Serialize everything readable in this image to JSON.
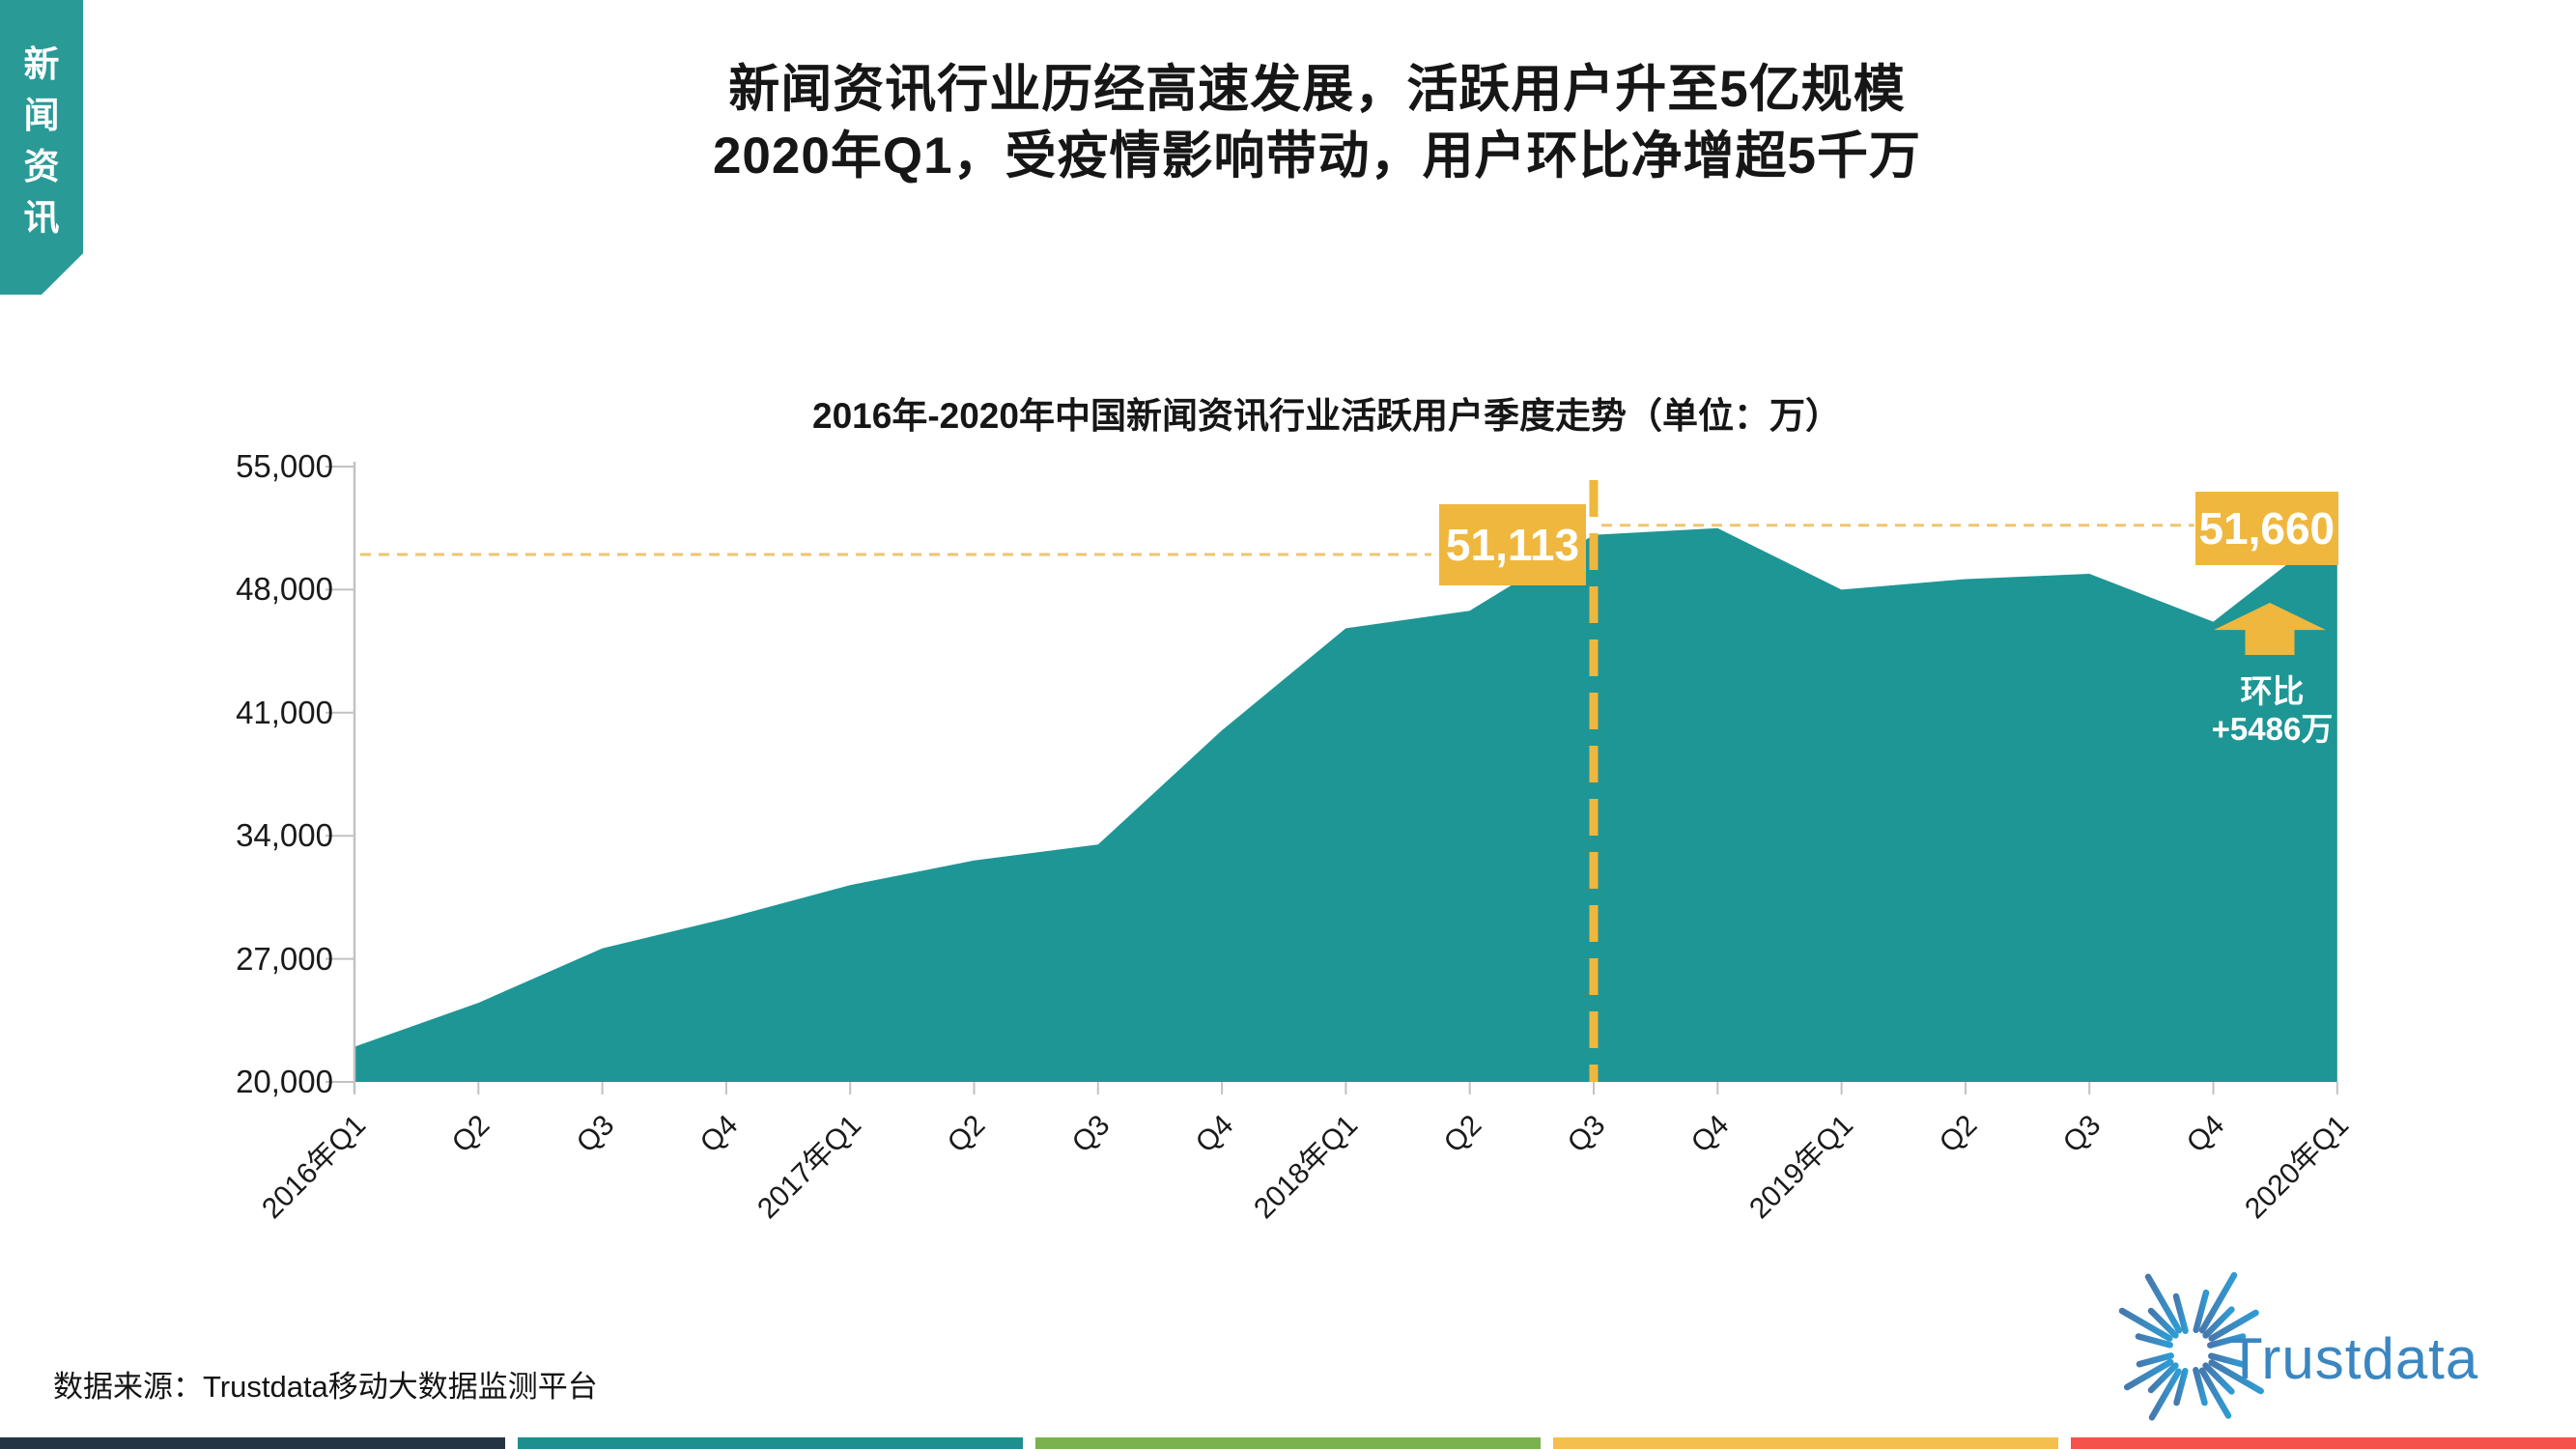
{
  "ribbon": {
    "label": "新闻资讯",
    "color": "#2A9A97"
  },
  "title": {
    "line1": "新闻资讯行业历经高速发展，活跃用户升至5亿规模",
    "line2": "2020年Q1，受疫情影响带动，用户环比净增超5千万"
  },
  "chart_data": {
    "type": "area",
    "title": "2016年-2020年中国新闻资讯行业活跃用户季度走势（单位：万）",
    "categories": [
      "2016年Q1",
      "Q2",
      "Q3",
      "Q4",
      "2017年Q1",
      "Q2",
      "Q3",
      "Q4",
      "2018年Q1",
      "Q2",
      "Q3",
      "Q4",
      "2019年Q1",
      "Q2",
      "Q3",
      "Q4",
      "2020年Q1"
    ],
    "values": [
      22000,
      24500,
      27600,
      29300,
      31200,
      32600,
      33500,
      40000,
      45800,
      46800,
      51113,
      51500,
      48000,
      48600,
      48900,
      46174,
      51660
    ],
    "unit": "万",
    "xlabel": "",
    "ylabel": "",
    "ylim": [
      20000,
      55000
    ],
    "yticks": [
      {
        "v": 20000,
        "label": "20,000"
      },
      {
        "v": 27000,
        "label": "27,000"
      },
      {
        "v": 34000,
        "label": "34,000"
      },
      {
        "v": 41000,
        "label": "41,000"
      },
      {
        "v": 48000,
        "label": "48,000"
      },
      {
        "v": 55000,
        "label": "55,000"
      }
    ],
    "grid": false,
    "legend": "none",
    "area_color": "#1E9695",
    "accent_color": "#EFB73E",
    "guide_color": "#EFC571",
    "axis_color": "#C2C2C2",
    "annotations": {
      "divider_index": 10,
      "peak_label": {
        "text": "51,113",
        "index": 10
      },
      "latest_label": {
        "text": "51,660",
        "index": 16
      },
      "qoq_note": {
        "line1": "环比",
        "line2": "+5486万"
      }
    }
  },
  "source": "数据来源：Trustdata移动大数据监测平台",
  "logo": {
    "text": "Trustdata",
    "color": "#3A86C1"
  },
  "footer": {
    "bars": [
      "#253444",
      "#1E8F8E",
      "#7AB24E",
      "#F5BF4F",
      "#F4524A"
    ]
  }
}
